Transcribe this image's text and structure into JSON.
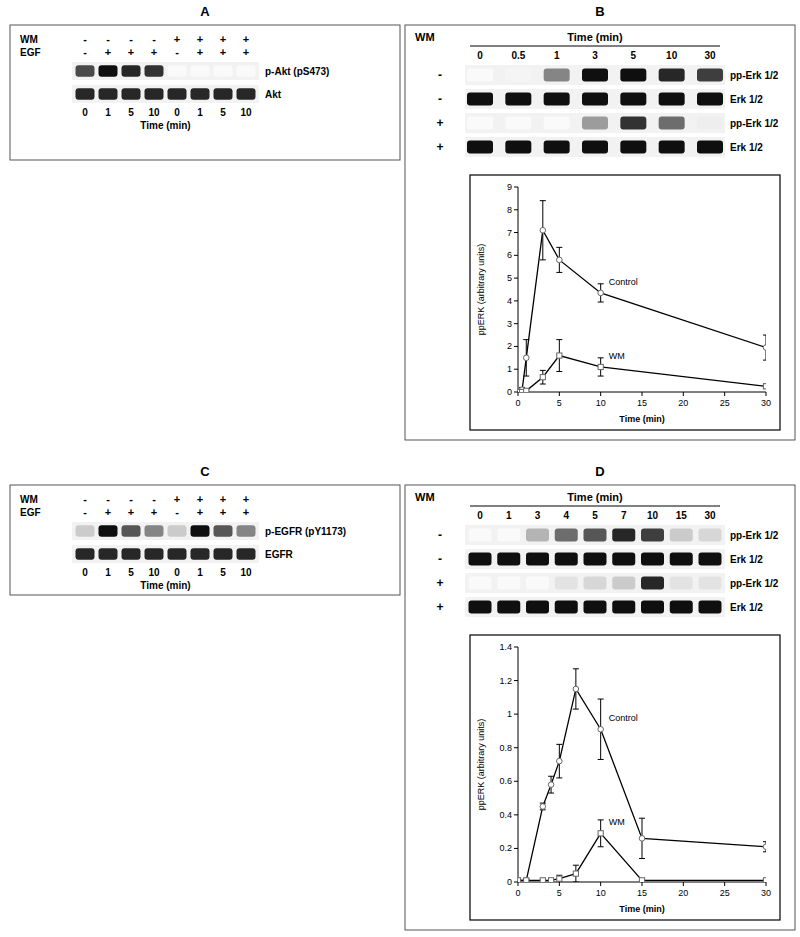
{
  "panels": [
    {
      "letter": "A",
      "blot": {
        "header_rows": [
          {
            "label": "WM",
            "marks": [
              "-",
              "-",
              "-",
              "-",
              "+",
              "+",
              "+",
              "+"
            ]
          },
          {
            "label": "EGF",
            "marks": [
              "-",
              "+",
              "+",
              "+",
              "-",
              "+",
              "+",
              "+"
            ]
          }
        ],
        "bands": [
          {
            "label": "p-Akt (pS473)",
            "intensities": [
              0.75,
              1,
              0.9,
              0.85,
              0,
              0,
              0,
              0
            ]
          },
          {
            "label": "Akt",
            "intensities": [
              0.9,
              0.9,
              0.9,
              0.9,
              0.9,
              0.9,
              0.9,
              0.9
            ]
          }
        ],
        "lanes": [
          0,
          1,
          5,
          10,
          0,
          1,
          5,
          10
        ],
        "lane_title": "Time (min)"
      }
    },
    {
      "letter": "B",
      "blot": {
        "treatment_label": "WM",
        "lane_title": "Time (min)",
        "lanes": [
          0,
          0.5,
          1,
          3,
          5,
          10,
          30
        ],
        "bands": [
          {
            "treatment": "-",
            "label": "pp-Erk 1/2",
            "intensities": [
              0,
              0.02,
              0.5,
              1,
              1,
              0.9,
              0.8
            ]
          },
          {
            "treatment": "-",
            "label": "Erk 1/2",
            "intensities": [
              1,
              1,
              1,
              1,
              1,
              1,
              1
            ]
          },
          {
            "treatment": "+",
            "label": "pp-Erk 1/2",
            "intensities": [
              0,
              0,
              0,
              0.4,
              0.85,
              0.6,
              0.05
            ]
          },
          {
            "treatment": "+",
            "label": "Erk 1/2",
            "intensities": [
              1,
              1,
              1,
              1,
              1,
              1,
              1
            ]
          }
        ]
      }
    },
    {
      "letter": "C",
      "blot": {
        "header_rows": [
          {
            "label": "WM",
            "marks": [
              "-",
              "-",
              "-",
              "-",
              "+",
              "+",
              "+",
              "+"
            ]
          },
          {
            "label": "EGF",
            "marks": [
              "-",
              "+",
              "+",
              "+",
              "-",
              "+",
              "+",
              "+"
            ]
          }
        ],
        "bands": [
          {
            "label": "p-EGFR (pY1173)",
            "intensities": [
              0.2,
              1,
              0.7,
              0.5,
              0.2,
              1,
              0.7,
              0.5
            ]
          },
          {
            "label": "EGFR",
            "intensities": [
              0.9,
              0.9,
              0.9,
              0.9,
              0.9,
              0.9,
              0.9,
              0.9
            ]
          }
        ],
        "lanes": [
          0,
          1,
          5,
          10,
          0,
          1,
          5,
          10
        ],
        "lane_title": "Time (min)"
      }
    },
    {
      "letter": "D",
      "blot": {
        "treatment_label": "WM",
        "lane_title": "Time (min)",
        "lanes": [
          0,
          1,
          3,
          4,
          5,
          7,
          10,
          15,
          30
        ],
        "bands": [
          {
            "treatment": "-",
            "label": "pp-Erk 1/2",
            "intensities": [
              0,
              0,
              0.3,
              0.6,
              0.7,
              0.9,
              0.8,
              0.2,
              0.15
            ]
          },
          {
            "treatment": "-",
            "label": "Erk 1/2",
            "intensities": [
              1,
              1,
              1,
              1,
              1,
              1,
              1,
              1,
              1
            ]
          },
          {
            "treatment": "+",
            "label": "pp-Erk 1/2",
            "intensities": [
              0,
              0,
              0,
              0.1,
              0.15,
              0.2,
              0.9,
              0.1,
              0.1
            ]
          },
          {
            "treatment": "+",
            "label": "Erk 1/2",
            "intensities": [
              1,
              1,
              1,
              1,
              1,
              1,
              1,
              1,
              1
            ]
          }
        ]
      }
    }
  ],
  "chart_data": [
    {
      "type": "line",
      "x_label": "Time (min)",
      "y_label": "ppERK (arbitrary units)",
      "x": [
        0,
        0.5,
        1,
        3,
        5,
        10,
        30
      ],
      "xlim": [
        0,
        30
      ],
      "xticks": [
        0,
        5,
        10,
        15,
        20,
        25,
        30
      ],
      "ylim": [
        0,
        9
      ],
      "yticks": [
        0,
        1,
        2,
        3,
        4,
        5,
        6,
        7,
        8,
        9
      ],
      "grid": false,
      "series": [
        {
          "name": "Control",
          "color": "#000000",
          "marker": "circle",
          "values": [
            0,
            0.1,
            1.5,
            7.1,
            5.8,
            4.35,
            1.95
          ],
          "errors": [
            0,
            0.1,
            0.8,
            1.3,
            0.55,
            0.4,
            0.55
          ]
        },
        {
          "name": "WM",
          "color": "#000000",
          "marker": "square",
          "values": [
            0,
            0,
            0.05,
            0.65,
            1.6,
            1.1,
            0.25
          ],
          "errors": [
            0,
            0,
            0.05,
            0.3,
            0.7,
            0.4,
            0.1
          ]
        }
      ]
    },
    {
      "type": "line",
      "x_label": "Time (min)",
      "y_label": "ppERK (arbitrary units)",
      "x": [
        0,
        1,
        3,
        4,
        5,
        7,
        10,
        15,
        30
      ],
      "xlim": [
        0,
        30
      ],
      "xticks": [
        0,
        5,
        10,
        15,
        20,
        25,
        30
      ],
      "ylim": [
        0,
        1.4
      ],
      "yticks": [
        0,
        0.2,
        0.4,
        0.6,
        0.8,
        1,
        1.2,
        1.4
      ],
      "grid": false,
      "series": [
        {
          "name": "Control",
          "color": "#000000",
          "marker": "circle",
          "values": [
            0.01,
            0.01,
            0.45,
            0.58,
            0.72,
            1.15,
            0.91,
            0.26,
            0.21
          ],
          "errors": [
            0.01,
            0.01,
            0.02,
            0.05,
            0.1,
            0.12,
            0.18,
            0.12,
            0.03
          ]
        },
        {
          "name": "WM",
          "color": "#000000",
          "marker": "square",
          "values": [
            0.01,
            0.01,
            0.01,
            0.01,
            0.02,
            0.05,
            0.29,
            0.01,
            0.01
          ],
          "errors": [
            0,
            0,
            0,
            0.01,
            0.02,
            0.05,
            0.08,
            0,
            0
          ]
        }
      ]
    }
  ]
}
